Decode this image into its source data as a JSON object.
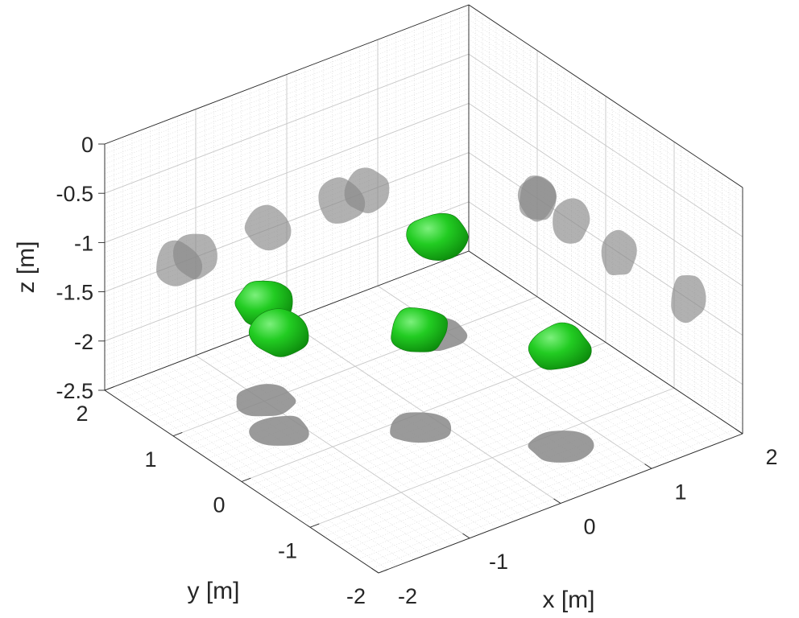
{
  "chart_data": {
    "type": "3d-isosurface",
    "xlabel": "x [m]",
    "ylabel": "y [m]",
    "zlabel": "z [m]",
    "xlim": [
      -2,
      2
    ],
    "ylim": [
      -2,
      2
    ],
    "zlim": [
      -2.5,
      0
    ],
    "x_ticks": [
      "-2",
      "-1",
      "0",
      "1",
      "2"
    ],
    "y_ticks": [
      "-2",
      "-1",
      "0",
      "1",
      "2"
    ],
    "z_ticks": [
      "0",
      "-0.5",
      "-1",
      "-1.5",
      "-2",
      "-2.5"
    ],
    "grid": true,
    "minor_grid": true,
    "surface_color": "#22cc22",
    "shadow_color": "#888888",
    "blobs": [
      {
        "x": -0.2,
        "y": -0.2,
        "z": -1.5
      },
      {
        "x": 0.6,
        "y": -1.2,
        "z": -1.5
      },
      {
        "x": -1.2,
        "y": 0.5,
        "z": -1.5
      },
      {
        "x": 0.9,
        "y": 1.0,
        "z": -1.5
      },
      {
        "x": -1.0,
        "y": 1.0,
        "z": -1.5
      }
    ]
  }
}
